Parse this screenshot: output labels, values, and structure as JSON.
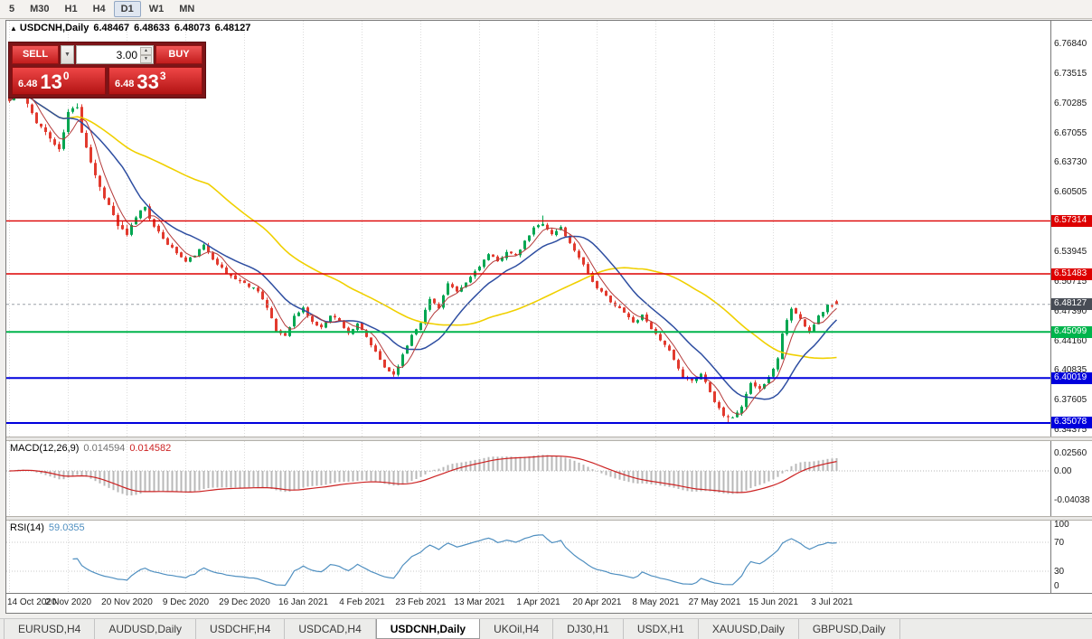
{
  "toolbar": {
    "buttons": [
      "5",
      "M30",
      "H1",
      "H4",
      "D1",
      "W1",
      "MN"
    ],
    "active": "D1"
  },
  "chart": {
    "title": {
      "collapse_icon": "▲",
      "symbol": "USDCNH,Daily",
      "open": "6.48467",
      "high": "6.48633",
      "low": "6.48073",
      "close": "6.48127"
    }
  },
  "trade_panel": {
    "sell_label": "SELL",
    "buy_label": "BUY",
    "volume": "3.00",
    "dropdown_icon": "▼",
    "spinner_up": "▲",
    "spinner_down": "▼",
    "sell_price": {
      "small": "6.48",
      "big": "13",
      "sup": "0"
    },
    "buy_price": {
      "small": "6.48",
      "big": "33",
      "sup": "3"
    }
  },
  "chart_data": {
    "type": "candlestick",
    "symbol": "USDCNH",
    "timeframe": "Daily",
    "last_candle": {
      "open": 6.48467,
      "high": 6.48633,
      "low": 6.48073,
      "close": 6.48127
    },
    "price_ticks": [
      "6.76840",
      "6.73515",
      "6.70285",
      "6.67055",
      "6.63730",
      "6.60505",
      "6.57280",
      "6.53945",
      "6.50715",
      "6.47390",
      "6.44160",
      "6.40835",
      "6.37605",
      "6.34375"
    ],
    "levels": [
      {
        "price": 6.57314,
        "label": "6.57314",
        "color": "#dd0000",
        "width": 1.4
      },
      {
        "price": 6.51483,
        "label": "6.51483",
        "color": "#dd0000",
        "width": 1.4
      },
      {
        "price": 6.45099,
        "label": "6.45099",
        "color": "#00b44c",
        "width": 2
      },
      {
        "price": 6.40019,
        "label": "6.40019",
        "color": "#0000dd",
        "width": 2
      },
      {
        "price": 6.35078,
        "label": "6.35078",
        "color": "#0000dd",
        "width": 2
      }
    ],
    "bid": {
      "price": 6.48127,
      "label": "6.48127",
      "tag_color": "#474c55"
    },
    "date_ticks": [
      "14 Oct 2020",
      "2 Nov 2020",
      "20 Nov 2020",
      "9 Dec 2020",
      "29 Dec 2020",
      "16 Jan 2021",
      "4 Feb 2021",
      "23 Feb 2021",
      "13 Mar 2021",
      "1 Apr 2021",
      "20 Apr 2021",
      "8 May 2021",
      "27 May 2021",
      "15 Jun 2021",
      "3 Jul 2021"
    ],
    "candles_per_tick": 13,
    "candle_count": 184,
    "close_anchors": [
      [
        0,
        6.705
      ],
      [
        2,
        6.72
      ],
      [
        4,
        6.7
      ],
      [
        6,
        6.683
      ],
      [
        9,
        6.664
      ],
      [
        11,
        6.65
      ],
      [
        13,
        6.692
      ],
      [
        15,
        6.7
      ],
      [
        16,
        6.672
      ],
      [
        18,
        6.638
      ],
      [
        20,
        6.61
      ],
      [
        22,
        6.59
      ],
      [
        24,
        6.568
      ],
      [
        26,
        6.556
      ],
      [
        28,
        6.578
      ],
      [
        30,
        6.59
      ],
      [
        32,
        6.566
      ],
      [
        35,
        6.548
      ],
      [
        39,
        6.528
      ],
      [
        41,
        6.536
      ],
      [
        43,
        6.546
      ],
      [
        45,
        6.532
      ],
      [
        48,
        6.515
      ],
      [
        52,
        6.504
      ],
      [
        55,
        6.497
      ],
      [
        57,
        6.477
      ],
      [
        59,
        6.452
      ],
      [
        61,
        6.447
      ],
      [
        63,
        6.468
      ],
      [
        65,
        6.477
      ],
      [
        67,
        6.462
      ],
      [
        69,
        6.455
      ],
      [
        71,
        6.47
      ],
      [
        73,
        6.463
      ],
      [
        75,
        6.45
      ],
      [
        77,
        6.459
      ],
      [
        79,
        6.445
      ],
      [
        81,
        6.428
      ],
      [
        83,
        6.412
      ],
      [
        85,
        6.404
      ],
      [
        87,
        6.425
      ],
      [
        89,
        6.448
      ],
      [
        91,
        6.462
      ],
      [
        93,
        6.487
      ],
      [
        95,
        6.478
      ],
      [
        97,
        6.504
      ],
      [
        99,
        6.494
      ],
      [
        101,
        6.505
      ],
      [
        104,
        6.524
      ],
      [
        106,
        6.536
      ],
      [
        108,
        6.528
      ],
      [
        110,
        6.54
      ],
      [
        112,
        6.534
      ],
      [
        114,
        6.55
      ],
      [
        116,
        6.565
      ],
      [
        118,
        6.571
      ],
      [
        120,
        6.558
      ],
      [
        122,
        6.566
      ],
      [
        124,
        6.548
      ],
      [
        126,
        6.534
      ],
      [
        128,
        6.516
      ],
      [
        130,
        6.498
      ],
      [
        132,
        6.49
      ],
      [
        134,
        6.48
      ],
      [
        136,
        6.472
      ],
      [
        138,
        6.461
      ],
      [
        140,
        6.47
      ],
      [
        142,
        6.455
      ],
      [
        143,
        6.448
      ],
      [
        145,
        6.438
      ],
      [
        147,
        6.42
      ],
      [
        149,
        6.4
      ],
      [
        151,
        6.396
      ],
      [
        153,
        6.406
      ],
      [
        155,
        6.385
      ],
      [
        156,
        6.374
      ],
      [
        158,
        6.36
      ],
      [
        160,
        6.357
      ],
      [
        162,
        6.369
      ],
      [
        164,
        6.395
      ],
      [
        166,
        6.388
      ],
      [
        168,
        6.4
      ],
      [
        170,
        6.422
      ],
      [
        171,
        6.45
      ],
      [
        173,
        6.477
      ],
      [
        175,
        6.465
      ],
      [
        177,
        6.452
      ],
      [
        179,
        6.468
      ],
      [
        181,
        6.48
      ],
      [
        183,
        6.48127
      ]
    ],
    "forced_wicks": [
      [
        2,
        "high",
        6.731
      ],
      [
        118,
        "high",
        6.579
      ],
      [
        159,
        "low",
        6.3515
      ]
    ],
    "moving_averages": [
      {
        "period": 45,
        "color": "#f0d000",
        "width": 1.6
      },
      {
        "period": 14,
        "color": "#2e4ea1",
        "width": 1.5
      },
      {
        "period": 5,
        "color": "#b43a3a",
        "width": 1
      }
    ],
    "candle_colors": {
      "up": "#00a651",
      "down": "#e23a2e"
    },
    "macd": {
      "name": "MACD(12,26,9)",
      "value_main": "0.014594",
      "value_signal": "0.014582",
      "fast": 12,
      "slow": 26,
      "signal": 9,
      "axis_labels": [
        "0.02560",
        "0.00",
        "-0.04038"
      ],
      "bar_color": "#b8b8b8",
      "signal_color": "#cc2222"
    },
    "rsi": {
      "name": "RSI(14)",
      "value": "59.0355",
      "period": 14,
      "axis_labels": [
        "100",
        "70",
        "30",
        "0"
      ],
      "levels": [
        70,
        30
      ],
      "color": "#4f8fc0"
    }
  },
  "tabs": {
    "items": [
      "EURUSD,H4",
      "AUDUSD,Daily",
      "USDCHF,H4",
      "USDCAD,H4",
      "USDCNH,Daily",
      "UKOil,H4",
      "DJ30,H1",
      "USDX,H1",
      "XAUUSD,Daily",
      "GBPUSD,Daily"
    ],
    "active_index": 4
  }
}
